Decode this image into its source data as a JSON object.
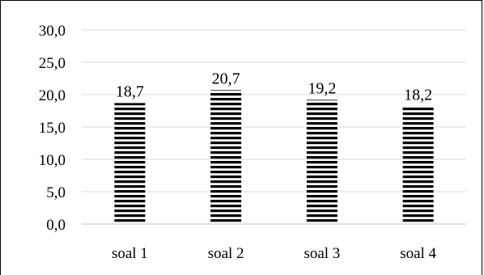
{
  "chart_data": {
    "type": "bar",
    "title": "",
    "xlabel": "",
    "ylabel": "",
    "categories": [
      "soal 1",
      "soal 2",
      "soal 3",
      "soal 4"
    ],
    "values": [
      18.7,
      20.7,
      19.2,
      18.2
    ],
    "value_labels": [
      "18,7",
      "20,7",
      "19,2",
      "18,2"
    ],
    "ylim": [
      0,
      30
    ],
    "y_ticks": [
      0,
      5,
      10,
      15,
      20,
      25,
      30
    ],
    "y_tick_labels": [
      "0,0",
      "5,0",
      "10,0",
      "15,0",
      "20,0",
      "25,0",
      "30,0"
    ],
    "grid": true,
    "legend": "none",
    "bar_fill": "horizontal-stripes",
    "bar_color": "#000000",
    "gridline_color": "#d9d9d9"
  }
}
